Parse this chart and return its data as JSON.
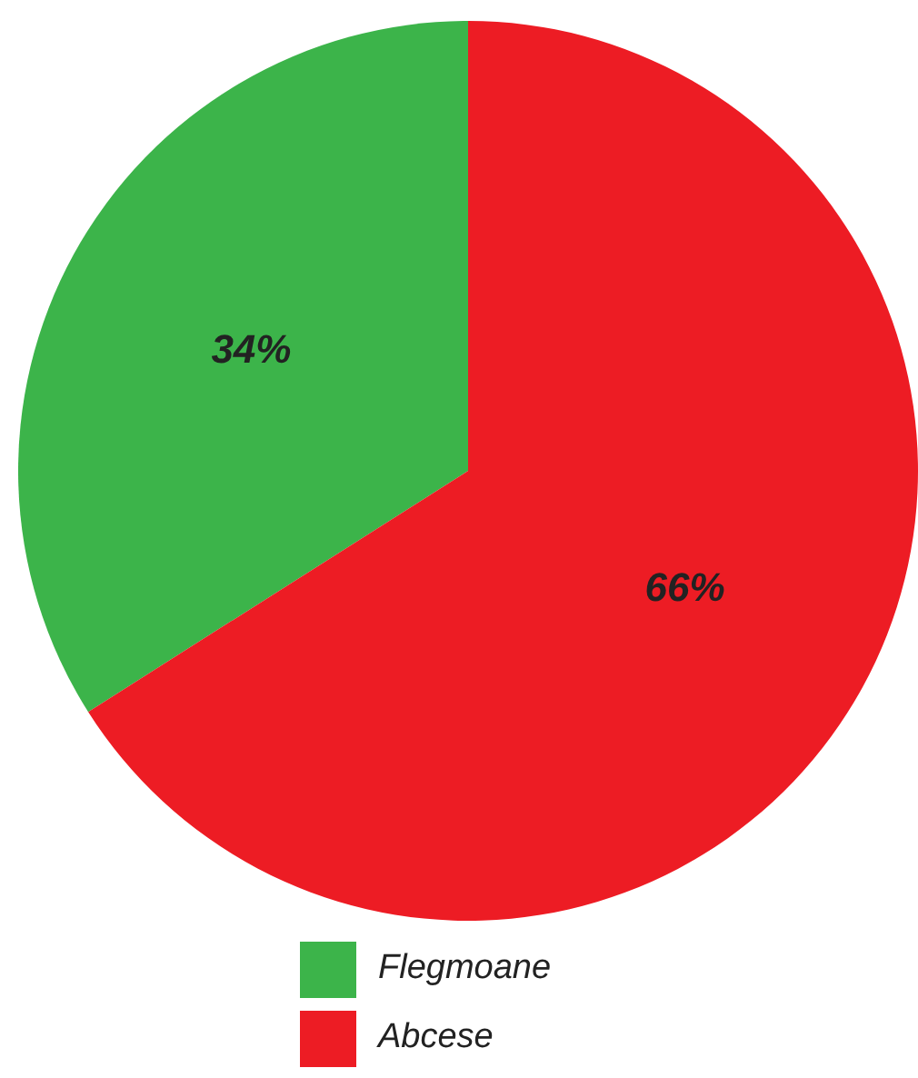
{
  "chart_data": {
    "type": "pie",
    "categories": [
      "Flegmoane",
      "Abcese"
    ],
    "values": [
      34,
      66
    ],
    "colors": [
      "#3cb44a",
      "#ed1c24"
    ],
    "value_labels": [
      "34%",
      "66%"
    ],
    "legend": "bottom"
  }
}
